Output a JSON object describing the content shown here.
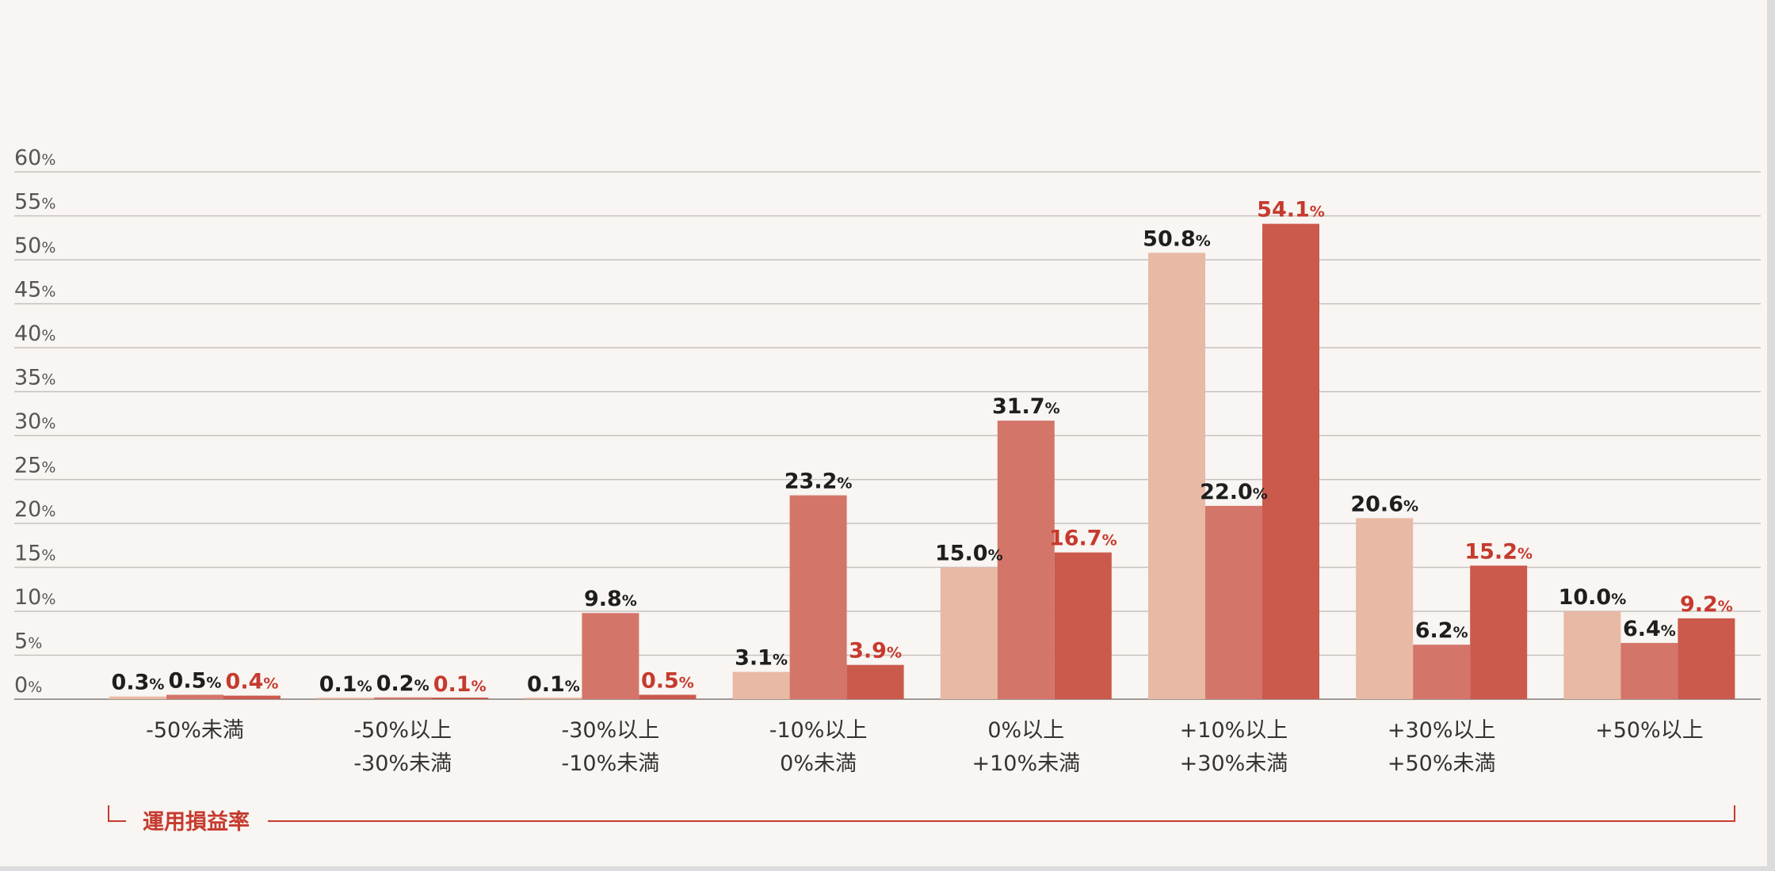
{
  "chart_data": {
    "type": "bar",
    "xlabel": "運用損益率",
    "ylabel": "",
    "ylim": [
      0,
      60
    ],
    "yticks": [
      0,
      5,
      10,
      15,
      20,
      25,
      30,
      35,
      40,
      45,
      50,
      55,
      60
    ],
    "categories": [
      [
        "-50%未満"
      ],
      [
        "-50%以上",
        "-30%未満"
      ],
      [
        "-30%以上",
        "-10%未満"
      ],
      [
        "-10%以上",
        "0%未満"
      ],
      [
        "0%以上",
        "+10%未満"
      ],
      [
        "+10%以上",
        "+30%未満"
      ],
      [
        "+30%以上",
        "+50%未満"
      ],
      [
        "+50%以上"
      ]
    ],
    "series": [
      {
        "values": [
          0.3,
          0.1,
          0.1,
          3.1,
          15.0,
          50.8,
          20.6,
          10.0
        ],
        "color": "#e8b9a4",
        "label_color": "#1e1e1e"
      },
      {
        "values": [
          0.5,
          0.2,
          9.8,
          23.2,
          31.7,
          22.0,
          6.2,
          6.4
        ],
        "color": "#d4756a",
        "label_color": "#1e1e1e"
      },
      {
        "values": [
          0.4,
          0.1,
          0.5,
          3.9,
          16.7,
          54.1,
          15.2,
          9.2
        ],
        "color": "#cb5a4c",
        "label_color": "#c63a2e"
      }
    ],
    "grid": true,
    "colors": {
      "grid": "#c6c2be",
      "baseline": "#9c9996",
      "accent": "#c63a2e"
    }
  }
}
